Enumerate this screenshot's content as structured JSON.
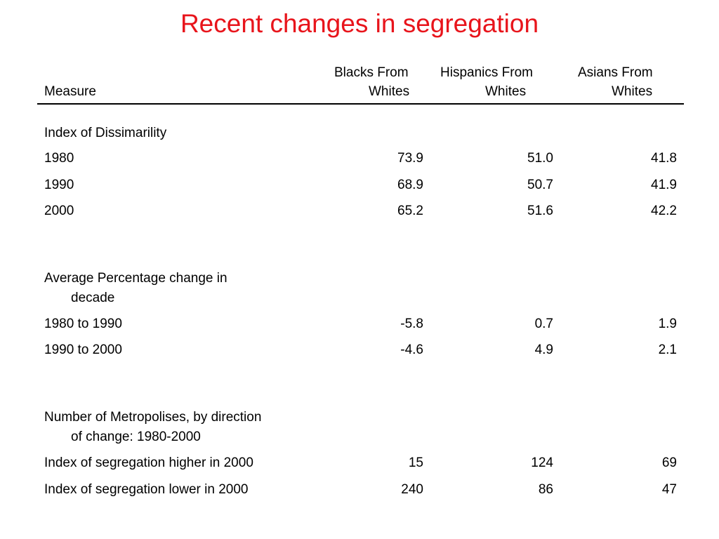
{
  "title": "Recent changes in segregation",
  "table": {
    "headers": {
      "measure": "Measure",
      "col1_line1": "Blacks From",
      "col1_line2": "Whites",
      "col2_line1": "Hispanics From",
      "col2_line2": "Whites",
      "col3_line1": "Asians From",
      "col3_line2": "Whites"
    },
    "sections": [
      {
        "heading_line1": "Index of Dissimarility",
        "rows": [
          {
            "label": "1980",
            "values": [
              "73.9",
              "51.0",
              "41.8"
            ]
          },
          {
            "label": "1990",
            "values": [
              "68.9",
              "50.7",
              "41.9"
            ]
          },
          {
            "label": "2000",
            "values": [
              "65.2",
              "51.6",
              "42.2"
            ]
          }
        ]
      },
      {
        "heading_line1": "Average Percentage change in",
        "heading_line2": "decade",
        "rows": [
          {
            "label": "1980 to 1990",
            "values": [
              "-5.8",
              "0.7",
              "1.9"
            ]
          },
          {
            "label": "1990 to 2000",
            "values": [
              "-4.6",
              "4.9",
              "2.1"
            ]
          }
        ]
      },
      {
        "heading_line1": "Number of Metropolises, by direction",
        "heading_line2": "of change: 1980-2000",
        "rows": [
          {
            "label": "Index of segregation higher in 2000",
            "values": [
              "15",
              "124",
              "69"
            ]
          },
          {
            "label": "Index of segregation lower in 2000",
            "values": [
              "240",
              "86",
              "47"
            ]
          }
        ]
      }
    ]
  }
}
